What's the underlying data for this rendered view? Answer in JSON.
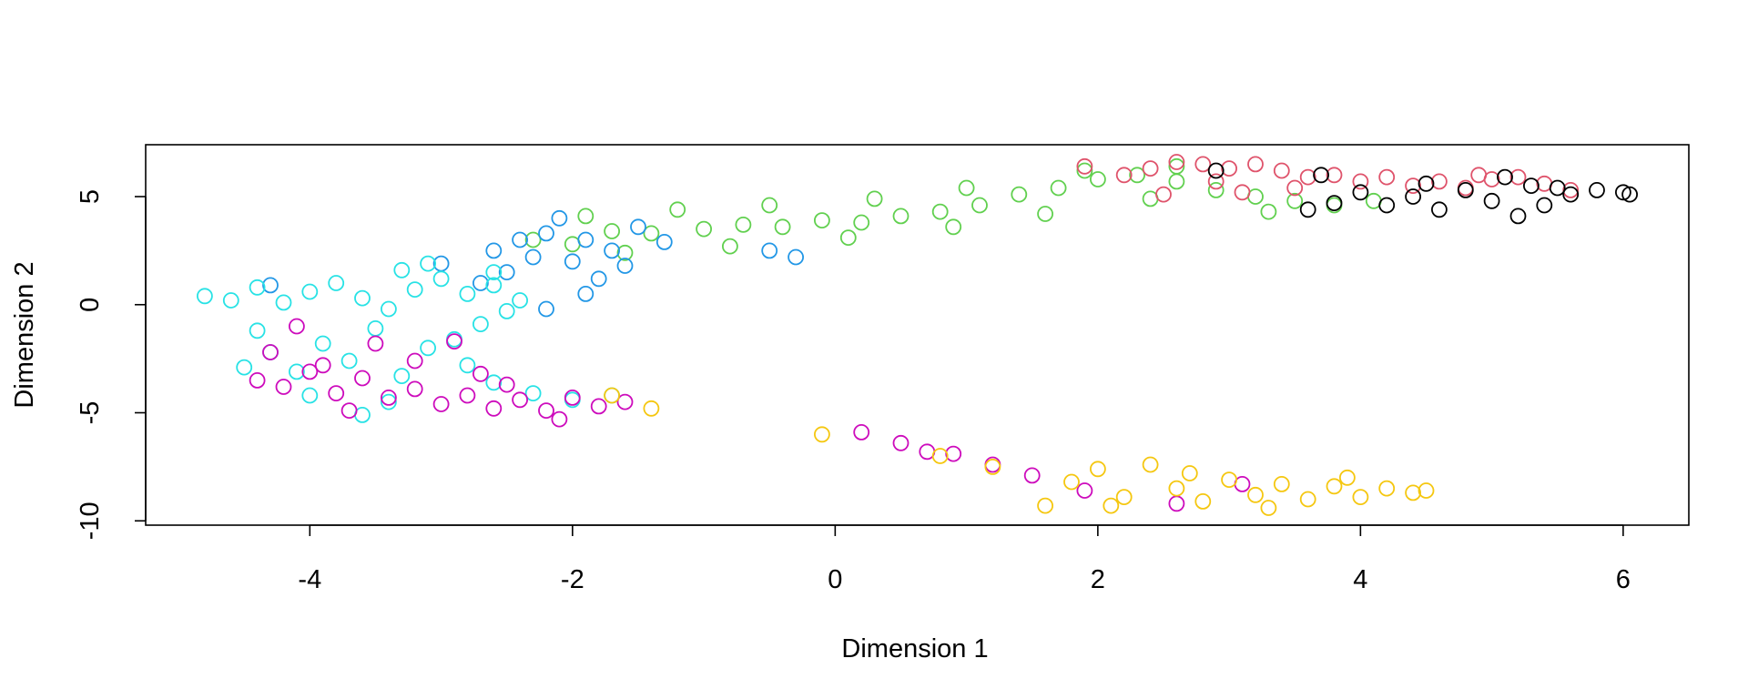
{
  "chart_data": {
    "type": "scatter",
    "title": "",
    "xlabel": "Dimension 1",
    "ylabel": "Dimension 2",
    "xlim": [
      -5.25,
      6.5
    ],
    "ylim": [
      -10.2,
      7.4
    ],
    "x_ticks": [
      -4,
      -2,
      0,
      2,
      4,
      6
    ],
    "x_tick_labels": [
      "-4",
      "-2",
      "0",
      "2",
      "4",
      "6"
    ],
    "y_ticks": [
      -10,
      -5,
      0,
      5
    ],
    "y_tick_labels": [
      "-10",
      "-5",
      "0",
      "5"
    ],
    "marker": "open-circle",
    "grid": false,
    "legend": "none",
    "series": [
      {
        "color": "#61D04F",
        "points": [
          [
            -2.3,
            3.0
          ],
          [
            -2.0,
            2.8
          ],
          [
            -1.7,
            3.4
          ],
          [
            -1.4,
            3.3
          ],
          [
            -1.0,
            3.5
          ],
          [
            -0.7,
            3.7
          ],
          [
            -0.4,
            3.6
          ],
          [
            -0.1,
            3.9
          ],
          [
            0.2,
            3.8
          ],
          [
            0.5,
            4.1
          ],
          [
            0.8,
            4.3
          ],
          [
            1.1,
            4.6
          ],
          [
            1.4,
            5.1
          ],
          [
            1.7,
            5.4
          ],
          [
            2.0,
            5.8
          ],
          [
            2.3,
            6.0
          ],
          [
            2.6,
            5.7
          ],
          [
            2.9,
            5.3
          ],
          [
            3.2,
            5.0
          ],
          [
            3.5,
            4.8
          ],
          [
            3.8,
            4.6
          ],
          [
            4.1,
            4.8
          ],
          [
            -1.9,
            4.1
          ],
          [
            -1.2,
            4.4
          ],
          [
            -0.5,
            4.6
          ],
          [
            0.3,
            4.9
          ],
          [
            1.0,
            5.4
          ],
          [
            1.9,
            6.2
          ],
          [
            2.6,
            6.4
          ],
          [
            -1.6,
            2.4
          ],
          [
            -0.8,
            2.7
          ],
          [
            0.1,
            3.1
          ],
          [
            0.9,
            3.6
          ],
          [
            1.6,
            4.2
          ],
          [
            2.4,
            4.9
          ],
          [
            3.3,
            4.3
          ]
        ]
      },
      {
        "color": "#2297E6",
        "points": [
          [
            -2.5,
            1.5
          ],
          [
            -2.3,
            2.2
          ],
          [
            -2.2,
            3.3
          ],
          [
            -2.1,
            4.0
          ],
          [
            -2.0,
            2.0
          ],
          [
            -1.9,
            3.0
          ],
          [
            -1.8,
            1.2
          ],
          [
            -1.7,
            2.5
          ],
          [
            -1.6,
            1.8
          ],
          [
            -1.5,
            3.6
          ],
          [
            -2.4,
            3.0
          ],
          [
            -2.6,
            2.5
          ],
          [
            -1.9,
            0.5
          ],
          [
            -2.2,
            -0.2
          ],
          [
            -1.3,
            2.9
          ],
          [
            -0.5,
            2.5
          ],
          [
            -0.3,
            2.2
          ],
          [
            -2.7,
            1.0
          ],
          [
            -3.0,
            1.9
          ],
          [
            -4.3,
            0.9
          ]
        ]
      },
      {
        "color": "#28E2E5",
        "points": [
          [
            -4.8,
            0.4
          ],
          [
            -4.6,
            0.2
          ],
          [
            -4.4,
            0.8
          ],
          [
            -4.2,
            0.1
          ],
          [
            -4.0,
            0.6
          ],
          [
            -3.8,
            1.0
          ],
          [
            -3.6,
            0.3
          ],
          [
            -3.4,
            -0.2
          ],
          [
            -3.2,
            0.7
          ],
          [
            -3.0,
            1.2
          ],
          [
            -2.8,
            0.5
          ],
          [
            -2.6,
            0.9
          ],
          [
            -2.5,
            -0.3
          ],
          [
            -2.7,
            -0.9
          ],
          [
            -2.9,
            -1.6
          ],
          [
            -3.1,
            1.9
          ],
          [
            -3.3,
            1.6
          ],
          [
            -2.6,
            1.5
          ],
          [
            -2.4,
            0.2
          ],
          [
            -4.4,
            -1.2
          ],
          [
            -4.3,
            -2.2
          ],
          [
            -4.1,
            -3.1
          ],
          [
            -3.9,
            -1.8
          ],
          [
            -3.7,
            -2.6
          ],
          [
            -3.5,
            -1.1
          ],
          [
            -3.3,
            -3.3
          ],
          [
            -3.1,
            -2.0
          ],
          [
            -2.8,
            -2.8
          ],
          [
            -2.6,
            -3.6
          ],
          [
            -3.6,
            -5.1
          ],
          [
            -3.4,
            -4.5
          ],
          [
            -2.3,
            -4.1
          ],
          [
            -2.0,
            -4.4
          ],
          [
            -1.7,
            -4.2
          ],
          [
            -4.5,
            -2.9
          ],
          [
            -4.0,
            -4.2
          ]
        ]
      },
      {
        "color": "#CD0BBC",
        "points": [
          [
            -4.4,
            -3.5
          ],
          [
            -4.2,
            -3.8
          ],
          [
            -4.0,
            -3.1
          ],
          [
            -3.8,
            -4.1
          ],
          [
            -3.6,
            -3.4
          ],
          [
            -3.4,
            -4.3
          ],
          [
            -3.2,
            -3.9
          ],
          [
            -3.0,
            -4.6
          ],
          [
            -2.8,
            -4.2
          ],
          [
            -2.6,
            -4.8
          ],
          [
            -2.4,
            -4.4
          ],
          [
            -2.2,
            -4.9
          ],
          [
            -2.0,
            -4.3
          ],
          [
            -1.8,
            -4.7
          ],
          [
            -1.6,
            -4.5
          ],
          [
            -4.3,
            -2.2
          ],
          [
            -4.1,
            -1.0
          ],
          [
            -3.9,
            -2.8
          ],
          [
            -3.5,
            -1.8
          ],
          [
            -3.2,
            -2.6
          ],
          [
            -2.9,
            -1.7
          ],
          [
            -2.7,
            -3.2
          ],
          [
            -3.7,
            -4.9
          ],
          [
            -2.5,
            -3.7
          ],
          [
            -2.1,
            -5.3
          ],
          [
            0.2,
            -5.9
          ],
          [
            0.5,
            -6.4
          ],
          [
            0.7,
            -6.8
          ],
          [
            0.9,
            -6.9
          ],
          [
            1.2,
            -7.4
          ],
          [
            1.5,
            -7.9
          ],
          [
            1.9,
            -8.6
          ],
          [
            2.6,
            -9.2
          ],
          [
            3.1,
            -8.3
          ]
        ]
      },
      {
        "color": "#F5C710",
        "points": [
          [
            -0.1,
            -6.0
          ],
          [
            -1.4,
            -4.8
          ],
          [
            -1.7,
            -4.2
          ],
          [
            0.8,
            -7.0
          ],
          [
            1.2,
            -7.5
          ],
          [
            1.6,
            -9.3
          ],
          [
            1.8,
            -8.2
          ],
          [
            2.0,
            -7.6
          ],
          [
            2.2,
            -8.9
          ],
          [
            2.4,
            -7.4
          ],
          [
            2.6,
            -8.5
          ],
          [
            2.8,
            -9.1
          ],
          [
            3.0,
            -8.1
          ],
          [
            3.2,
            -8.8
          ],
          [
            3.4,
            -8.3
          ],
          [
            3.6,
            -9.0
          ],
          [
            3.8,
            -8.4
          ],
          [
            4.0,
            -8.9
          ],
          [
            4.2,
            -8.5
          ],
          [
            4.4,
            -8.7
          ],
          [
            4.5,
            -8.6
          ],
          [
            2.1,
            -9.3
          ],
          [
            2.7,
            -7.8
          ],
          [
            3.3,
            -9.4
          ],
          [
            3.9,
            -8.0
          ]
        ]
      },
      {
        "color": "#DF536B",
        "points": [
          [
            2.2,
            6.0
          ],
          [
            2.4,
            6.3
          ],
          [
            2.6,
            6.6
          ],
          [
            2.8,
            6.5
          ],
          [
            3.0,
            6.3
          ],
          [
            3.2,
            6.5
          ],
          [
            3.4,
            6.2
          ],
          [
            3.6,
            5.9
          ],
          [
            3.8,
            6.0
          ],
          [
            4.0,
            5.7
          ],
          [
            4.2,
            5.9
          ],
          [
            4.4,
            5.5
          ],
          [
            4.6,
            5.7
          ],
          [
            4.8,
            5.4
          ],
          [
            5.0,
            5.8
          ],
          [
            5.2,
            5.9
          ],
          [
            5.4,
            5.6
          ],
          [
            5.6,
            5.3
          ],
          [
            2.5,
            5.1
          ],
          [
            2.9,
            5.7
          ],
          [
            3.1,
            5.2
          ],
          [
            1.9,
            6.4
          ],
          [
            3.5,
            5.4
          ],
          [
            4.9,
            6.0
          ]
        ]
      },
      {
        "color": "#000000",
        "points": [
          [
            3.6,
            4.4
          ],
          [
            3.8,
            4.7
          ],
          [
            4.0,
            5.2
          ],
          [
            4.2,
            4.6
          ],
          [
            4.4,
            5.0
          ],
          [
            4.6,
            4.4
          ],
          [
            4.8,
            5.3
          ],
          [
            5.0,
            4.8
          ],
          [
            5.2,
            4.1
          ],
          [
            5.3,
            5.5
          ],
          [
            5.4,
            4.6
          ],
          [
            5.6,
            5.1
          ],
          [
            5.8,
            5.3
          ],
          [
            6.0,
            5.2
          ],
          [
            6.05,
            5.1
          ],
          [
            3.7,
            6.0
          ],
          [
            2.9,
            6.2
          ],
          [
            4.5,
            5.6
          ],
          [
            5.1,
            5.9
          ],
          [
            5.5,
            5.4
          ]
        ]
      }
    ]
  }
}
